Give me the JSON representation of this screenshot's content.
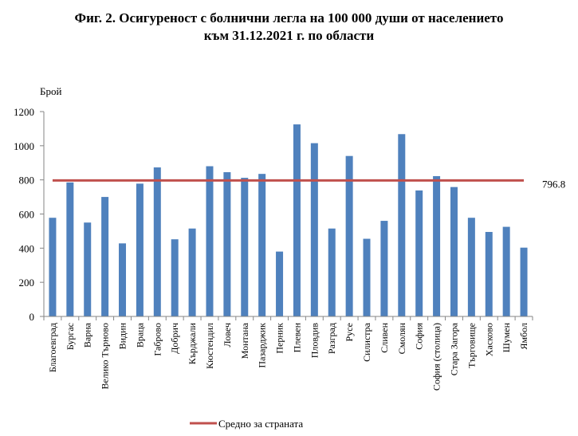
{
  "title_line1": "Фиг. 2. Осигуреност с болнични легла на 100 000 души от населението",
  "title_line2": "към 31.12.2021 г. по области",
  "colors": {
    "bar": "#4f81bd",
    "average_line": "#c0504d",
    "axis": "#868686"
  },
  "chart_data": {
    "type": "bar",
    "ylabel": "Брой",
    "ylim": [
      0,
      1200
    ],
    "yticks": [
      "0",
      "200",
      "400",
      "600",
      "800",
      "1000",
      "1200"
    ],
    "grid": false,
    "legend_position": "bottom",
    "categories": [
      "Благоевград",
      "Бургас",
      "Варна",
      "Велико Търново",
      "Видин",
      "Враца",
      "Габрово",
      "Добрич",
      "Кърджали",
      "Кюстендил",
      "Ловеч",
      "Монтана",
      "Пазарджик",
      "Перник",
      "Плевен",
      "Пловдив",
      "Разград",
      "Русе",
      "Силистра",
      "Сливен",
      "Смолян",
      "София",
      "София (столица)",
      "Стара Загора",
      "Търговище",
      "Хасково",
      "Шумен",
      "Ямбол"
    ],
    "series": [
      {
        "values": [
          578,
          785,
          550,
          700,
          428,
          778,
          873,
          452,
          515,
          880,
          845,
          812,
          835,
          380,
          1125,
          1015,
          515,
          940,
          455,
          560,
          1068,
          738,
          822,
          758,
          578,
          495,
          525,
          403
        ]
      },
      {
        "name": "Средно за страната",
        "type": "line",
        "value": 796.8,
        "label": "796.8"
      }
    ]
  }
}
